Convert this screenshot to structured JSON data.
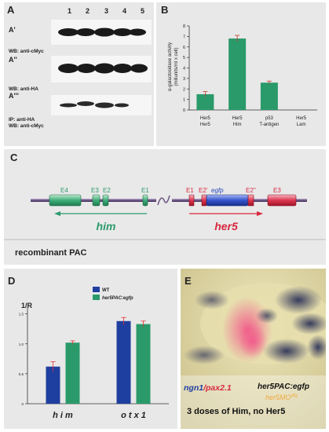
{
  "panel_a": {
    "label": "A",
    "lanes": [
      "1",
      "2",
      "3",
      "4",
      "5"
    ],
    "rows": [
      {
        "name": "A'",
        "blot": "WB: anti-cMyc"
      },
      {
        "name": "A''",
        "blot": "WB: anti-HA"
      },
      {
        "name": "A'''",
        "blot_line1": "IP: anti-HA",
        "blot_line2": "WB: anti-cMyc"
      }
    ]
  },
  "panel_b": {
    "label": "B",
    "chart_data": {
      "type": "bar",
      "ylabel_line1": "α-galactosidase activity",
      "ylabel_line2": "(miliunits/ml x cell)",
      "ylim": [
        0,
        8
      ],
      "yticks": [
        "0",
        "1",
        "2",
        "3",
        "4",
        "5",
        "6",
        "7",
        "8"
      ],
      "categories": [
        {
          "line1": "Her5",
          "line2": "Her5"
        },
        {
          "line1": "Her5",
          "line2": "Him"
        },
        {
          "line1": "p53",
          "line2": "T-antigen"
        },
        {
          "line1": "Her5",
          "line2": "Lam"
        }
      ],
      "values": [
        1.5,
        6.8,
        2.6,
        0
      ],
      "errors": [
        0.25,
        0.3,
        0.15,
        0
      ],
      "color": "#2b9a6b"
    }
  },
  "panel_c": {
    "label": "C",
    "exons_him": [
      "E4",
      "E3",
      "E2",
      "E1"
    ],
    "exons_her5": [
      "E1",
      "E2'",
      "egfp",
      "E2''",
      "E3"
    ],
    "gene_him": "him",
    "gene_her5": "her5",
    "caption": "recombinant PAC",
    "colors": {
      "him": "#2b9a6b",
      "her5": "#d8283f",
      "egfp": "#2244bb"
    }
  },
  "panel_d": {
    "label": "D",
    "chart_data": {
      "type": "bar",
      "ylabel": "1/R",
      "ylim": [
        0,
        1.6
      ],
      "yticks": [
        "0",
        "0.5",
        "1.0",
        "1.5"
      ],
      "categories": [
        "h i m",
        "o t x 1"
      ],
      "series": [
        {
          "name": "WT",
          "values": [
            0.62,
            1.38
          ],
          "errors": [
            0.08,
            0.06
          ],
          "color": "#1f3fa0"
        },
        {
          "name": "her5PAC:egfp",
          "values": [
            1.02,
            1.33
          ],
          "errors": [
            0.03,
            0.05
          ],
          "color": "#2b9a6b"
        }
      ]
    }
  },
  "panel_e": {
    "label": "E",
    "left_label_part1": "ngn1",
    "left_label_part2": "/pax2.1",
    "right_label": "her5PAC:egfp",
    "overlay_label": "her5MO",
    "overlay_sup": "atg",
    "caption": "3 doses of Him, no Her5"
  }
}
